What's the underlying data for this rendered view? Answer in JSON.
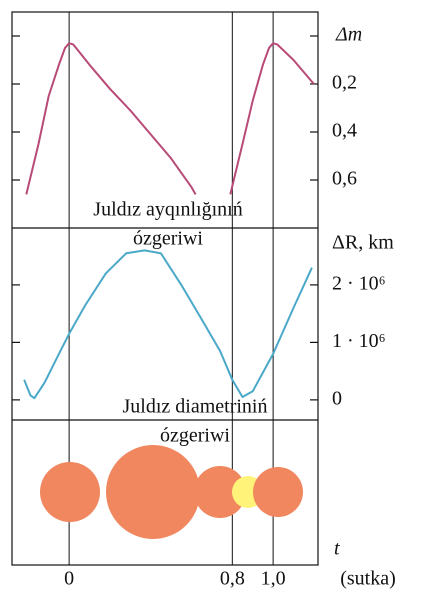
{
  "chart_data": [
    {
      "type": "line",
      "annotation": [
        "Juldız ayqınlığınıń",
        "ózgeriwi"
      ],
      "ylabel": "Δm",
      "x": [
        -0.21,
        -0.15,
        -0.1,
        -0.05,
        -0.02,
        0,
        0.02,
        0.1,
        0.2,
        0.3,
        0.4,
        0.5,
        0.6,
        0.62,
        0.7,
        0.79,
        0.85,
        0.9,
        0.95,
        0.98,
        1.0,
        1.02,
        1.1,
        1.2
      ],
      "values": [
        0.66,
        0.45,
        0.25,
        0.12,
        0.05,
        0.03,
        0.035,
        0.12,
        0.22,
        0.31,
        0.41,
        0.51,
        0.63,
        0.66,
        null,
        0.66,
        0.45,
        0.27,
        0.12,
        0.05,
        0.03,
        0.035,
        0.1,
        0.2
      ],
      "color": "#b84a78",
      "xlim": [
        -0.28,
        1.22
      ],
      "ylim": [
        0.8,
        -0.1
      ],
      "yticks": [
        {
          "value": 0,
          "label": null
        },
        {
          "value": 0.2,
          "label": "0,2"
        },
        {
          "value": 0.4,
          "label": "0,4"
        },
        {
          "value": 0.6,
          "label": "0,6"
        }
      ]
    },
    {
      "type": "line",
      "annotation": [
        "Juldız diametriniń",
        "ózgeriwi"
      ],
      "ylabel": "ΔR, km",
      "x": [
        -0.22,
        -0.19,
        -0.17,
        -0.12,
        -0.05,
        0,
        0.08,
        0.18,
        0.28,
        0.37,
        0.45,
        0.55,
        0.65,
        0.74,
        0.8,
        0.85,
        0.9,
        1.0,
        1.1,
        1.19
      ],
      "values": [
        350000,
        80000,
        30000,
        300000,
        800000,
        1150000,
        1650000,
        2200000,
        2550000,
        2600000,
        2550000,
        2000000,
        1400000,
        850000,
        350000,
        50000,
        150000,
        800000,
        1600000,
        2300000
      ],
      "color": "#4aa8c8",
      "xlim": [
        -0.28,
        1.22
      ],
      "ylim": [
        -350000,
        2990000
      ],
      "yticks": [
        {
          "value": 0,
          "label": "0"
        },
        {
          "value": 1000000,
          "label": "1 · 10⁶"
        },
        {
          "value": 2000000,
          "label": "2 · 10⁶"
        }
      ],
      "xlabel": "(sutka)",
      "xsymbol": "t",
      "xticks": [
        0,
        {
          "value": 0.8,
          "label": "0,8"
        },
        {
          "value": 1,
          "label": "1,0"
        }
      ]
    }
  ]
}
